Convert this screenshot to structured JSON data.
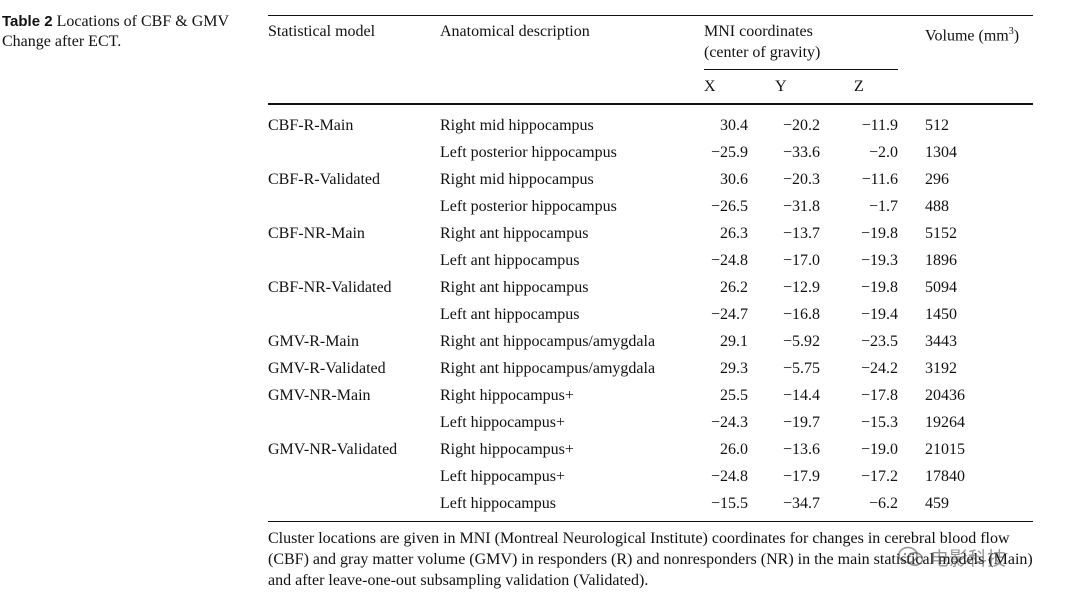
{
  "caption": {
    "label": "Table 2",
    "text": "Locations of CBF & GMV Change after ECT."
  },
  "table": {
    "headers": {
      "model": "Statistical model",
      "description": "Anatomical description",
      "mni_line1": "MNI coordinates",
      "mni_line2": "(center of gravity)",
      "x": "X",
      "y": "Y",
      "z": "Z",
      "volume": "Volume (mm",
      "volume_sup": "3",
      "volume_close": ")"
    },
    "rows": [
      {
        "model": "CBF-R-Main",
        "description": "Right mid hippocampus",
        "x": "30.4",
        "y": "−20.2",
        "z": "−11.9",
        "volume": "512"
      },
      {
        "model": "",
        "description": "Left posterior hippocampus",
        "x": "−25.9",
        "y": "−33.6",
        "z": "−2.0",
        "volume": "1304"
      },
      {
        "model": "CBF-R-Validated",
        "description": "Right mid hippocampus",
        "x": "30.6",
        "y": "−20.3",
        "z": "−11.6",
        "volume": "296"
      },
      {
        "model": "",
        "description": "Left posterior hippocampus",
        "x": "−26.5",
        "y": "−31.8",
        "z": "−1.7",
        "volume": "488"
      },
      {
        "model": "CBF-NR-Main",
        "description": "Right ant hippocampus",
        "x": "26.3",
        "y": "−13.7",
        "z": "−19.8",
        "volume": "5152"
      },
      {
        "model": "",
        "description": "Left ant hippocampus",
        "x": "−24.8",
        "y": "−17.0",
        "z": "−19.3",
        "volume": "1896"
      },
      {
        "model": "CBF-NR-Validated",
        "description": "Right ant hippocampus",
        "x": "26.2",
        "y": "−12.9",
        "z": "−19.8",
        "volume": "5094"
      },
      {
        "model": "",
        "description": "Left ant hippocampus",
        "x": "−24.7",
        "y": "−16.8",
        "z": "−19.4",
        "volume": "1450"
      },
      {
        "model": "GMV-R-Main",
        "description": "Right ant hippocampus/amygdala",
        "x": "29.1",
        "y": "−5.92",
        "z": "−23.5",
        "volume": "3443"
      },
      {
        "model": "GMV-R-Validated",
        "description": "Right ant hippocampus/amygdala",
        "x": "29.3",
        "y": "−5.75",
        "z": "−24.2",
        "volume": "3192"
      },
      {
        "model": "GMV-NR-Main",
        "description": "Right hippocampus+",
        "x": "25.5",
        "y": "−14.4",
        "z": "−17.8",
        "volume": "20436"
      },
      {
        "model": "",
        "description": "Left hippocampus+",
        "x": "−24.3",
        "y": "−19.7",
        "z": "−15.3",
        "volume": "19264"
      },
      {
        "model": "GMV-NR-Validated",
        "description": "Right hippocampus+",
        "x": "26.0",
        "y": "−13.6",
        "z": "−19.0",
        "volume": "21015"
      },
      {
        "model": "",
        "description": "Left hippocampus+",
        "x": "−24.8",
        "y": "−17.9",
        "z": "−17.2",
        "volume": "17840"
      },
      {
        "model": "",
        "description": "Left hippocampus",
        "x": "−15.5",
        "y": "−34.7",
        "z": "−6.2",
        "volume": "459"
      }
    ]
  },
  "footnote": "Cluster locations are given in MNI (Montreal Neurological Institute) coordinates for changes in cerebral blood flow (CBF) and gray matter volume (GMV) in responders (R) and nonresponders (NR) in the main statistical models (Main) and after leave-one-out subsampling validation (Validated).",
  "watermark": {
    "text": "电影科技",
    "icon": "wechat-icon"
  }
}
